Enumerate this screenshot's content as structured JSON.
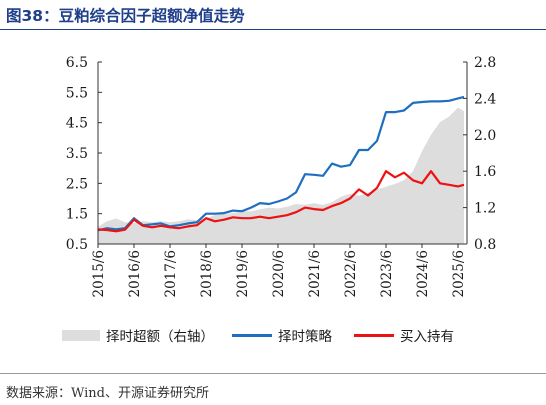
{
  "title": "图38：豆粕综合因子超额净值走势",
  "source": "数据来源：Wind、开源证券研究所",
  "colors": {
    "excess": "#dddddd",
    "strategy": "#1f6fbf",
    "buyhold": "#ee1111",
    "title": "#1f3f8a"
  },
  "chart_data": {
    "type": "line",
    "title": "",
    "xlabel": "",
    "ylabel": "",
    "x_ticks": [
      "2015/6",
      "2016/6",
      "2017/6",
      "2018/6",
      "2019/6",
      "2020/6",
      "2021/6",
      "2022/6",
      "2023/6",
      "2024/6",
      "2025/6"
    ],
    "x_range": [
      "2015/6",
      "2025/9"
    ],
    "left_axis": {
      "ticks": [
        "0.5",
        "1.5",
        "2.5",
        "3.5",
        "4.5",
        "5.5",
        "6.5"
      ],
      "ylim": [
        0.5,
        6.5
      ]
    },
    "right_axis": {
      "ticks": [
        "0.8",
        "1.2",
        "1.6",
        "2.0",
        "2.4",
        "2.8"
      ],
      "ylim": [
        0.8,
        2.8
      ]
    },
    "grid": false,
    "legend_position": "bottom",
    "series": [
      {
        "name": "择时超额（右轴）",
        "type": "area",
        "axis": "right",
        "x": [
          "2015/6",
          "2015/9",
          "2015/12",
          "2016/3",
          "2016/6",
          "2016/9",
          "2016/12",
          "2017/3",
          "2017/6",
          "2017/9",
          "2017/12",
          "2018/3",
          "2018/6",
          "2018/9",
          "2018/12",
          "2019/3",
          "2019/6",
          "2019/9",
          "2019/12",
          "2020/3",
          "2020/6",
          "2020/9",
          "2020/12",
          "2021/3",
          "2021/6",
          "2021/9",
          "2021/12",
          "2022/3",
          "2022/6",
          "2022/9",
          "2022/12",
          "2023/3",
          "2023/6",
          "2023/9",
          "2023/12",
          "2024/3",
          "2024/6",
          "2024/9",
          "2024/12",
          "2025/3",
          "2025/6",
          "2025/8"
        ],
        "values": [
          0.99,
          1.05,
          1.08,
          1.04,
          1.03,
          1.05,
          1.04,
          1.05,
          1.04,
          1.05,
          1.07,
          1.06,
          1.08,
          1.12,
          1.13,
          1.14,
          1.16,
          1.16,
          1.18,
          1.2,
          1.19,
          1.21,
          1.24,
          1.23,
          1.25,
          1.23,
          1.26,
          1.32,
          1.35,
          1.33,
          1.36,
          1.4,
          1.43,
          1.46,
          1.5,
          1.6,
          1.82,
          2.0,
          2.14,
          2.2,
          2.3,
          2.26
        ]
      },
      {
        "name": "择时策略",
        "type": "line",
        "axis": "left",
        "x": [
          "2015/6",
          "2015/9",
          "2015/12",
          "2016/3",
          "2016/6",
          "2016/9",
          "2016/12",
          "2017/3",
          "2017/6",
          "2017/9",
          "2017/12",
          "2018/3",
          "2018/6",
          "2018/9",
          "2018/12",
          "2019/3",
          "2019/6",
          "2019/9",
          "2019/12",
          "2020/3",
          "2020/6",
          "2020/9",
          "2020/12",
          "2021/3",
          "2021/6",
          "2021/9",
          "2021/12",
          "2022/3",
          "2022/6",
          "2022/9",
          "2022/12",
          "2023/3",
          "2023/6",
          "2023/9",
          "2023/12",
          "2024/3",
          "2024/6",
          "2024/9",
          "2024/12",
          "2025/3",
          "2025/6",
          "2025/8"
        ],
        "values": [
          0.95,
          1.02,
          0.98,
          1.02,
          1.35,
          1.12,
          1.15,
          1.18,
          1.08,
          1.12,
          1.18,
          1.22,
          1.5,
          1.5,
          1.52,
          1.6,
          1.58,
          1.7,
          1.85,
          1.82,
          1.9,
          2.0,
          2.2,
          2.8,
          2.78,
          2.75,
          3.15,
          3.05,
          3.1,
          3.6,
          3.6,
          3.9,
          4.85,
          4.85,
          4.9,
          5.15,
          5.18,
          5.2,
          5.2,
          5.22,
          5.3,
          5.35
        ]
      },
      {
        "name": "买入持有",
        "type": "line",
        "axis": "left",
        "x": [
          "2015/6",
          "2015/9",
          "2015/12",
          "2016/3",
          "2016/6",
          "2016/9",
          "2016/12",
          "2017/3",
          "2017/6",
          "2017/9",
          "2017/12",
          "2018/3",
          "2018/6",
          "2018/9",
          "2018/12",
          "2019/3",
          "2019/6",
          "2019/9",
          "2019/12",
          "2020/3",
          "2020/6",
          "2020/9",
          "2020/12",
          "2021/3",
          "2021/6",
          "2021/9",
          "2021/12",
          "2022/3",
          "2022/6",
          "2022/9",
          "2022/12",
          "2023/3",
          "2023/6",
          "2023/9",
          "2023/12",
          "2024/3",
          "2024/6",
          "2024/9",
          "2024/12",
          "2025/3",
          "2025/6",
          "2025/8"
        ],
        "values": [
          0.98,
          0.96,
          0.92,
          0.97,
          1.3,
          1.1,
          1.05,
          1.1,
          1.05,
          1.02,
          1.08,
          1.12,
          1.35,
          1.25,
          1.3,
          1.38,
          1.35,
          1.35,
          1.4,
          1.35,
          1.4,
          1.45,
          1.55,
          1.7,
          1.65,
          1.62,
          1.75,
          1.85,
          2.0,
          2.3,
          2.1,
          2.35,
          2.9,
          2.7,
          2.85,
          2.6,
          2.5,
          2.9,
          2.5,
          2.45,
          2.4,
          2.45
        ]
      }
    ],
    "legend": [
      "择时超额（右轴）",
      "择时策略",
      "买入持有"
    ]
  }
}
